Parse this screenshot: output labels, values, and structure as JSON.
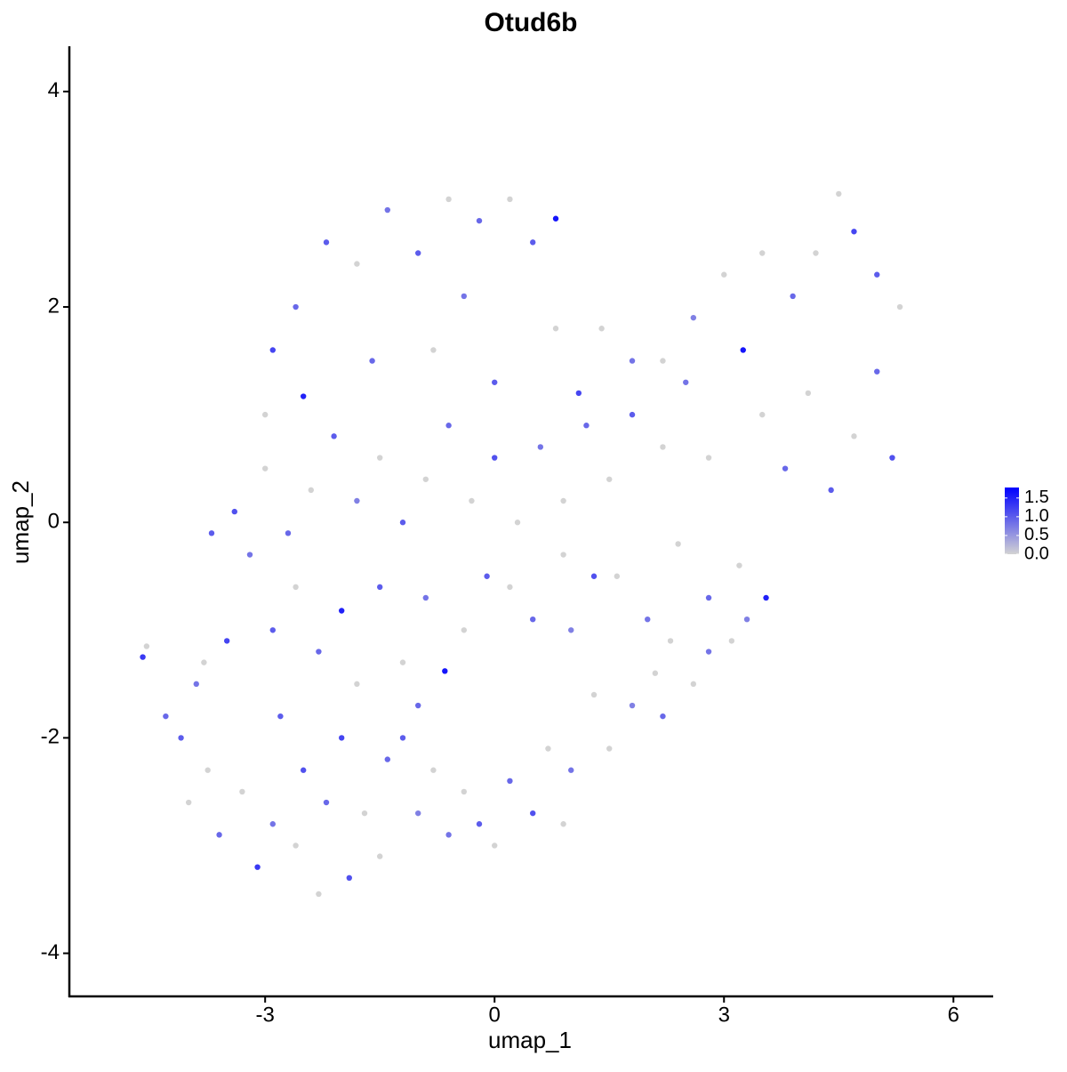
{
  "chart_data": {
    "type": "scatter",
    "title": "Otud6b",
    "x_label": "umap_1",
    "y_label": "umap_2",
    "x": [
      -4.6,
      -4.55,
      -4.3,
      -4.1,
      -3.9,
      -3.75,
      -3.6,
      -3.5,
      -3.3,
      -3.1,
      -2.9,
      -2.8,
      -2.6,
      -2.5,
      -2.3,
      -2.2,
      -2.0,
      -1.9,
      -1.7,
      -1.5,
      -1.4,
      -1.2,
      -1.0,
      -0.8,
      -0.6,
      -0.4,
      -0.2,
      0.0,
      0.2,
      0.5,
      0.7,
      0.9,
      1.0,
      1.3,
      1.5,
      1.8,
      2.1,
      2.2,
      2.6,
      2.8,
      3.1,
      3.3,
      3.55,
      3.2,
      2.8,
      2.4,
      2.0,
      1.6,
      1.3,
      0.9,
      0.5,
      0.2,
      -0.1,
      -0.4,
      -0.65,
      -0.9,
      -1.2,
      -1.5,
      -1.8,
      -2.0,
      -2.3,
      -2.6,
      -2.9,
      -3.2,
      -3.4,
      -3.0,
      -2.7,
      -2.4,
      -2.1,
      -1.8,
      -1.5,
      -1.2,
      -0.9,
      -0.6,
      -0.3,
      0.0,
      0.3,
      0.6,
      0.9,
      1.2,
      1.5,
      1.8,
      2.2,
      2.5,
      2.8,
      3.25,
      3.5,
      3.8,
      4.1,
      4.4,
      4.7,
      5.0,
      5.2,
      5.3,
      5.0,
      4.7,
      4.5,
      4.2,
      3.9,
      3.5,
      3.0,
      2.6,
      2.2,
      1.8,
      1.4,
      1.1,
      0.8,
      0.8,
      0.5,
      0.2,
      -0.2,
      -0.6,
      -1.0,
      -1.4,
      -1.8,
      -2.2,
      -2.6,
      -2.9,
      -2.5,
      -3.0,
      -1.6,
      -0.8,
      0.0,
      -0.4,
      -3.7,
      -4.0,
      -3.8,
      1.0,
      -1.0,
      2.3
    ],
    "y": [
      -1.25,
      -1.15,
      -1.8,
      -2.0,
      -1.5,
      -2.3,
      -2.9,
      -1.1,
      -2.5,
      -3.2,
      -2.8,
      -1.8,
      -3.0,
      -2.3,
      -3.45,
      -2.6,
      -2.0,
      -3.3,
      -2.7,
      -3.1,
      -2.2,
      -2.0,
      -2.7,
      -2.3,
      -2.9,
      -2.5,
      -2.8,
      -3.0,
      -2.4,
      -2.7,
      -2.1,
      -2.8,
      -2.3,
      -1.6,
      -2.1,
      -1.7,
      -1.4,
      -1.8,
      -1.5,
      -1.2,
      -1.1,
      -0.9,
      -0.7,
      -0.4,
      -0.7,
      -0.2,
      -0.9,
      -0.5,
      -0.5,
      -0.3,
      -0.9,
      -0.6,
      -0.5,
      -1.0,
      -1.38,
      -0.7,
      -1.3,
      -0.6,
      -1.5,
      -0.82,
      -1.2,
      -0.6,
      -1.0,
      -0.3,
      0.1,
      0.5,
      -0.1,
      0.3,
      0.8,
      0.2,
      0.6,
      0.0,
      0.4,
      0.9,
      0.2,
      0.6,
      0.0,
      0.7,
      0.2,
      0.9,
      0.4,
      1.0,
      0.7,
      1.3,
      0.6,
      1.6,
      1.0,
      0.5,
      1.2,
      0.3,
      0.8,
      1.4,
      0.6,
      2.0,
      2.3,
      2.7,
      3.05,
      2.5,
      2.1,
      2.5,
      2.3,
      1.9,
      1.5,
      1.5,
      1.8,
      1.2,
      1.8,
      2.82,
      2.6,
      3.0,
      2.8,
      3.0,
      2.5,
      2.9,
      2.4,
      2.6,
      2.0,
      1.6,
      1.17,
      1.0,
      1.5,
      1.6,
      1.3,
      2.1,
      -0.1,
      -2.6,
      -1.3,
      -1.0,
      -1.7,
      -1.1
    ],
    "expression": [
      1.3,
      0,
      0.9,
      1.0,
      0.8,
      0,
      0.9,
      1.2,
      0,
      1.3,
      0.8,
      1.0,
      0,
      1.1,
      0,
      0.9,
      1.2,
      1.1,
      0,
      0,
      0.9,
      1.0,
      0.7,
      0,
      0.8,
      0,
      1.0,
      0,
      0.9,
      1.1,
      0,
      0,
      0.8,
      0,
      0,
      0.7,
      0,
      0.9,
      0,
      0.8,
      0,
      0.7,
      1.5,
      0,
      0.9,
      0,
      0.8,
      0,
      1.1,
      0,
      0.9,
      0,
      1.0,
      0,
      1.6,
      0.8,
      0,
      1.0,
      0,
      1.5,
      0.9,
      0,
      1.0,
      0.8,
      1.1,
      0,
      0.9,
      0,
      1.0,
      0.7,
      0,
      1.0,
      0,
      0.9,
      0,
      1.1,
      0,
      0.8,
      0,
      0.9,
      0,
      1.0,
      0,
      0.8,
      0,
      1.6,
      0,
      0.9,
      0,
      1.0,
      0,
      0.9,
      1.1,
      0,
      1.0,
      1.2,
      0,
      0,
      0.9,
      0,
      0,
      0.7,
      0,
      0.8,
      0,
      1.2,
      0,
      1.6,
      1.0,
      0,
      0.9,
      0,
      1.0,
      0.8,
      0,
      1.0,
      0.9,
      1.2,
      1.5,
      0,
      0.9,
      0,
      1.0,
      0.8,
      1.0,
      0,
      0,
      0.7,
      0.9,
      0
    ],
    "color_low": "#d3d3d3",
    "color_high": "#0000ff",
    "xlim": [
      -5.56,
      6.52
    ],
    "ylim": [
      -4.4,
      4.42
    ],
    "xticks": [
      -3,
      0,
      3,
      6
    ],
    "yticks": [
      -4,
      -2,
      0,
      2,
      4
    ],
    "colorbar_lim": [
      0,
      1.78
    ],
    "colorbar_ticks": [
      {
        "value": 0,
        "label": "0.0"
      },
      {
        "value": 0.5,
        "label": "0.5"
      },
      {
        "value": 1,
        "label": "1.0"
      },
      {
        "value": 1.5,
        "label": "1.5"
      }
    ]
  }
}
